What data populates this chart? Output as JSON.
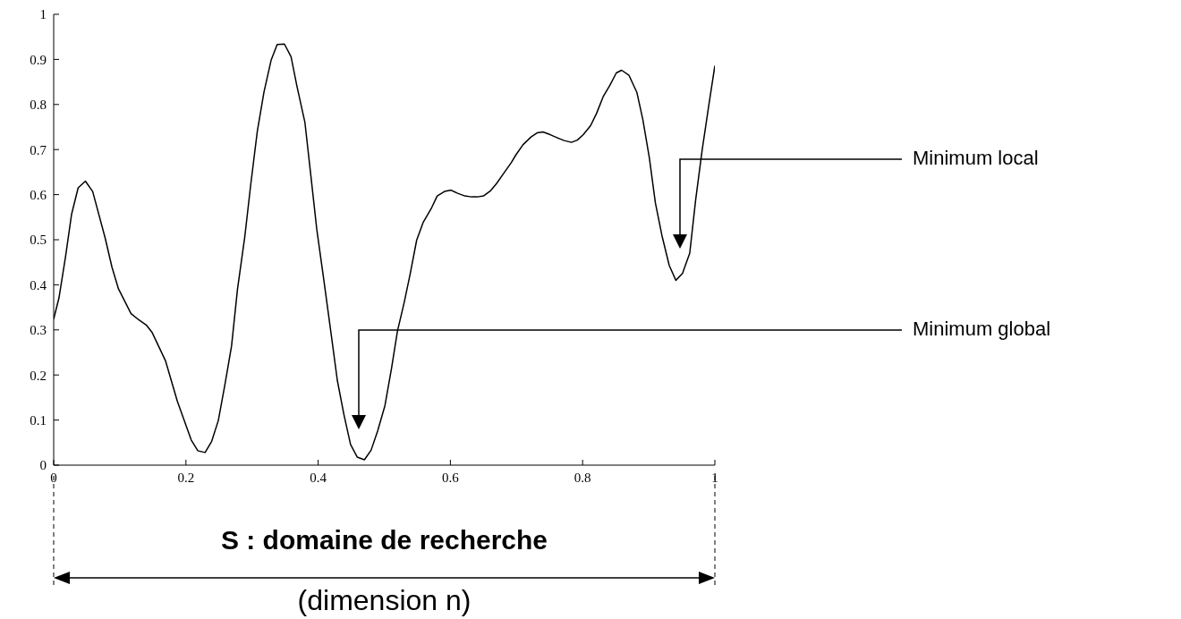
{
  "chart_data": {
    "type": "line",
    "xlabel": "S : domaine de recherche",
    "xlim": [
      0,
      1
    ],
    "xticks": [
      0,
      0.2,
      0.4,
      0.6,
      0.8,
      1
    ],
    "ylim": [
      0,
      1
    ],
    "yticks": [
      0,
      0.1,
      0.2,
      0.3,
      0.4,
      0.5,
      0.6,
      0.7,
      0.8,
      0.9,
      1
    ],
    "series": [
      {
        "color": "#000000",
        "x": [
          0,
          0.008,
          0.018,
          0.027,
          0.037,
          0.048,
          0.059,
          0.078,
          0.088,
          0.098,
          0.117,
          0.129,
          0.14,
          0.149,
          0.169,
          0.187,
          0.208,
          0.218,
          0.229,
          0.239,
          0.249,
          0.259,
          0.269,
          0.278,
          0.289,
          0.298,
          0.308,
          0.318,
          0.329,
          0.338,
          0.349,
          0.359,
          0.368,
          0.38,
          0.388,
          0.398,
          0.408,
          0.419,
          0.429,
          0.439,
          0.449,
          0.459,
          0.47,
          0.48,
          0.49,
          0.501,
          0.511,
          0.52,
          0.53,
          0.539,
          0.549,
          0.559,
          0.571,
          0.58,
          0.591,
          0.601,
          0.611,
          0.622,
          0.632,
          0.641,
          0.65,
          0.661,
          0.67,
          0.681,
          0.692,
          0.699,
          0.71,
          0.722,
          0.731,
          0.74,
          0.751,
          0.762,
          0.772,
          0.783,
          0.792,
          0.801,
          0.812,
          0.821,
          0.831,
          0.841,
          0.851,
          0.859,
          0.87,
          0.882,
          0.891,
          0.901,
          0.91,
          0.92,
          0.931,
          0.941,
          0.951,
          0.962,
          0.971,
          0.981,
          0.991,
          1
        ],
        "values": [
          0.324,
          0.371,
          0.463,
          0.556,
          0.615,
          0.63,
          0.607,
          0.503,
          0.44,
          0.391,
          0.336,
          0.322,
          0.311,
          0.294,
          0.232,
          0.142,
          0.056,
          0.032,
          0.028,
          0.053,
          0.099,
          0.179,
          0.264,
          0.39,
          0.506,
          0.622,
          0.741,
          0.827,
          0.899,
          0.933,
          0.934,
          0.906,
          0.84,
          0.76,
          0.655,
          0.522,
          0.417,
          0.298,
          0.188,
          0.112,
          0.046,
          0.018,
          0.012,
          0.033,
          0.076,
          0.132,
          0.215,
          0.298,
          0.36,
          0.423,
          0.499,
          0.539,
          0.569,
          0.597,
          0.607,
          0.61,
          0.603,
          0.597,
          0.595,
          0.595,
          0.597,
          0.609,
          0.625,
          0.648,
          0.671,
          0.688,
          0.711,
          0.728,
          0.737,
          0.739,
          0.733,
          0.726,
          0.72,
          0.716,
          0.721,
          0.733,
          0.753,
          0.78,
          0.817,
          0.842,
          0.87,
          0.876,
          0.865,
          0.827,
          0.767,
          0.681,
          0.582,
          0.509,
          0.443,
          0.41,
          0.425,
          0.47,
          0.589,
          0.701,
          0.8,
          0.886
        ]
      }
    ],
    "annotations": [
      "Minimum local",
      "Minimum global",
      "(dimension n)"
    ]
  }
}
